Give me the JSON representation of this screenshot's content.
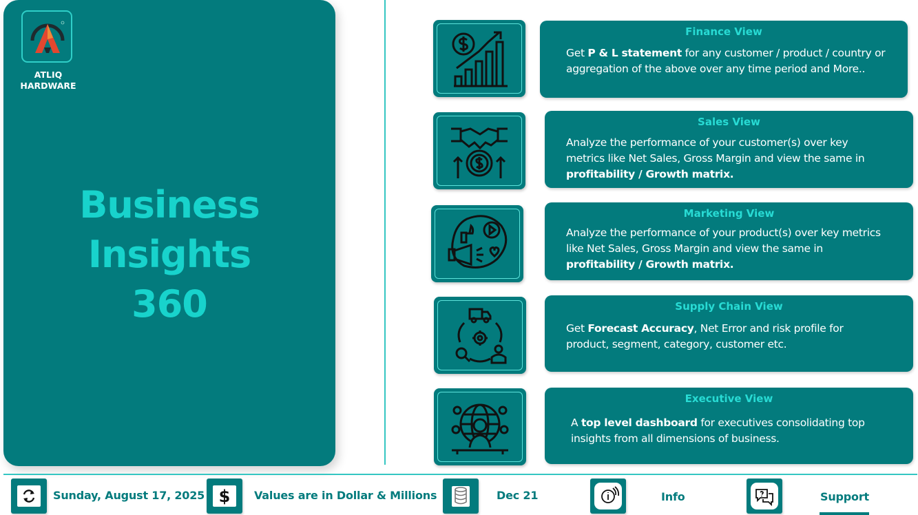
{
  "brand": {
    "line1": "ATLIQ",
    "line2": "HARDWARE",
    "logo_icon": "atliq-a-logo-icon"
  },
  "hero": {
    "line1": "Business Insights",
    "line2": "360"
  },
  "views": [
    {
      "title": "Finance View",
      "icon": "dollar-growth-chart-icon",
      "desc_parts": [
        "Get ",
        "P & L statement",
        " for any customer / product / country or aggregation of the above over any  time period and More.."
      ]
    },
    {
      "title": "Sales View",
      "icon": "handshake-dollar-icon",
      "desc_parts": [
        "Analyze the performance of your customer(s) over key metrics like Net Sales, Gross Margin and view the same in ",
        "profitability / Growth matrix."
      ]
    },
    {
      "title": "Marketing View",
      "icon": "megaphone-social-icon",
      "desc_parts": [
        "Analyze the performance of your product(s) over key metrics like Net Sales, Gross Margin and view the same in ",
        "profitability / Growth matrix."
      ]
    },
    {
      "title": "Supply Chain View",
      "icon": "supply-chain-cycle-icon",
      "desc_parts": [
        "Get ",
        "Forecast Accuracy",
        ", Net Error and risk profile for product, segment, category, customer etc."
      ]
    },
    {
      "title": "Executive View",
      "icon": "executive-globe-icon",
      "desc_parts": [
        "A ",
        "top level dashboard",
        " for executives consolidating top insights from all dimensions of business."
      ]
    }
  ],
  "footer": {
    "date": "Sunday, August 17, 2025",
    "units": "Values are in Dollar & Millions",
    "data_refresh": "Dec 21",
    "info": "Info",
    "support": "Support",
    "icons": [
      "refresh-icon",
      "dollar-icon",
      "database-icon",
      "info-icon",
      "chat-support-icon"
    ]
  },
  "colors": {
    "teal": "#037b7d",
    "accent": "#18d3cc",
    "divider": "#34c6c2"
  }
}
